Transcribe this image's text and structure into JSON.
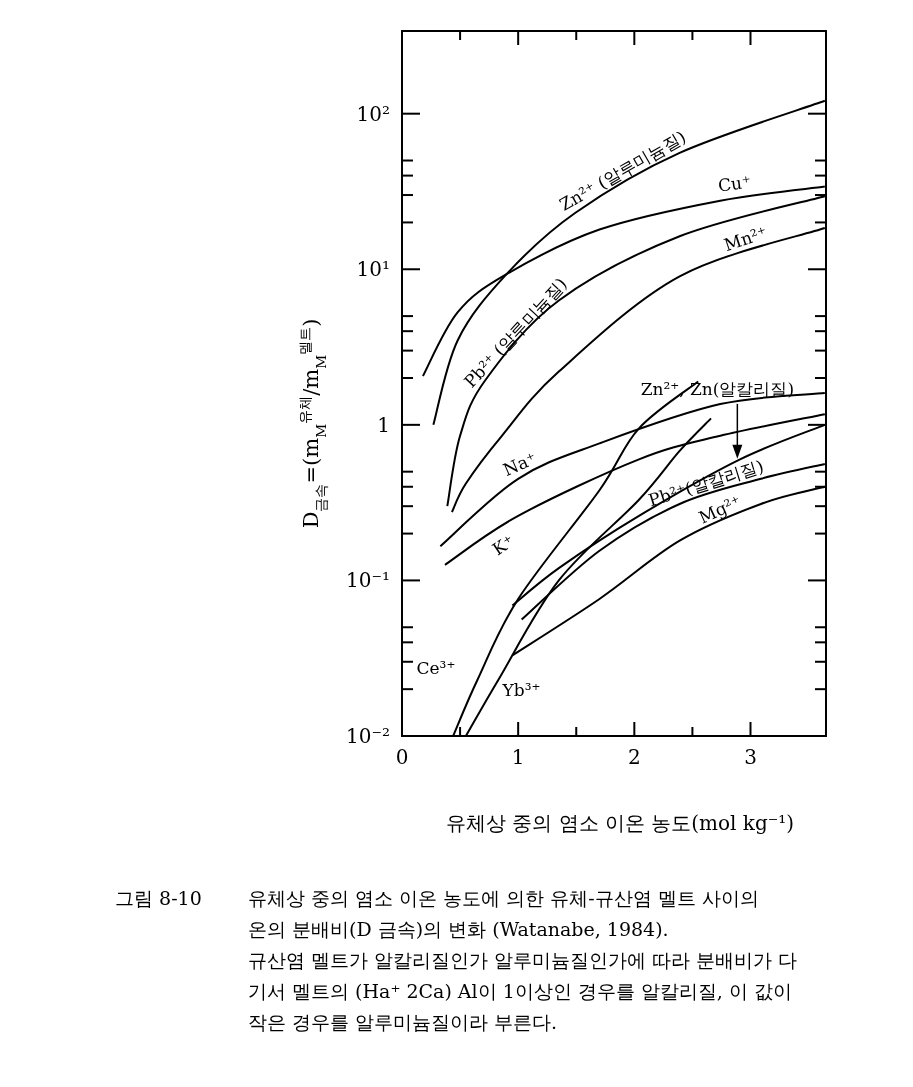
{
  "chart_data": {
    "type": "line",
    "xlabel": "유체상 중의 염소 이온 농도(mol kg⁻¹)",
    "ylabel": "D$_{금속}$=(m$_{M}$$^{유체}$/m$_{M}$$^{멜트}$)",
    "log": "y",
    "marker": "none",
    "line_style": "solid",
    "xlim": [
      0,
      3.65
    ],
    "ylim": [
      0.01,
      340
    ],
    "xticks": [
      0,
      {
        "value": 0.5,
        "label": null
      },
      1,
      {
        "value": 1.5,
        "label": null
      },
      2,
      {
        "value": 2.5,
        "label": null
      },
      3
    ],
    "yticks": [
      {
        "value": 0.01,
        "label": "10⁻²"
      },
      {
        "value": 0.02,
        "label": null
      },
      {
        "value": 0.03,
        "label": null
      },
      {
        "value": 0.04,
        "label": null
      },
      {
        "value": 0.05,
        "label": null
      },
      {
        "value": 0.1,
        "label": "10⁻¹"
      },
      {
        "value": 0.2,
        "label": null
      },
      {
        "value": 0.3,
        "label": null
      },
      {
        "value": 0.4,
        "label": null
      },
      {
        "value": 0.5,
        "label": null
      },
      1,
      {
        "value": 2,
        "label": null
      },
      {
        "value": 3,
        "label": null
      },
      {
        "value": 4,
        "label": null
      },
      {
        "value": 5,
        "label": null
      },
      {
        "value": 10,
        "label": "10¹"
      },
      {
        "value": 20,
        "label": null
      },
      {
        "value": 30,
        "label": null
      },
      {
        "value": 40,
        "label": null
      },
      {
        "value": 50,
        "label": null
      },
      {
        "value": 100,
        "label": "10²"
      }
    ],
    "series": [
      {
        "name": "Zn²⁺ (알루미늄질)",
        "color": "#000000",
        "x": [
          0.27,
          0.48,
          0.9,
          1.49,
          2.39,
          3.64
        ],
        "values": [
          1.0,
          3.5,
          9.3,
          23,
          56,
          121
        ]
      },
      {
        "name": "Cu⁺",
        "color": "#000000",
        "x": [
          0.18,
          0.48,
          0.9,
          1.7,
          2.74,
          3.64
        ],
        "values": [
          2.06,
          5.3,
          9.3,
          18,
          27.6,
          34
        ]
      },
      {
        "name": "Pb²⁺ (알루미늄질)",
        "color": "#000000",
        "x": [
          0.39,
          0.5,
          0.72,
          1.35,
          2.39,
          3.64
        ],
        "values": [
          0.3,
          0.85,
          1.95,
          6.3,
          16.3,
          29.5
        ]
      },
      {
        "name": "Mn²⁺",
        "color": "#000000",
        "x": [
          0.43,
          0.55,
          0.86,
          1.35,
          2.39,
          3.64
        ],
        "values": [
          0.275,
          0.42,
          0.85,
          2.2,
          9.0,
          18.4
        ]
      },
      {
        "name": "Zn²⁺, Zn(알칼리질)",
        "color": "#000000",
        "x": [
          0.95,
          1.35,
          2.04,
          2.91,
          3.64
        ],
        "values": [
          0.069,
          0.12,
          0.26,
          0.6,
          1.0
        ]
      },
      {
        "name": "Na⁺",
        "color": "#000000",
        "x": [
          0.33,
          1.0,
          1.7,
          2.74,
          3.64
        ],
        "values": [
          0.166,
          0.45,
          0.76,
          1.36,
          1.6
        ]
      },
      {
        "name": "K⁺",
        "color": "#000000",
        "x": [
          0.37,
          1.0,
          2.04,
          2.74,
          3.64
        ],
        "values": [
          0.126,
          0.26,
          0.6,
          0.85,
          1.17
        ]
      },
      {
        "name": "Pb²⁺(알칼리질)",
        "color": "#000000",
        "x": [
          1.03,
          1.7,
          2.39,
          3.09,
          3.64
        ],
        "values": [
          0.056,
          0.155,
          0.31,
          0.45,
          0.56
        ]
      },
      {
        "name": "Mg²⁺",
        "color": "#000000",
        "x": [
          0.95,
          1.7,
          2.39,
          3.09,
          3.64
        ],
        "values": [
          0.033,
          0.076,
          0.18,
          0.31,
          0.4
        ]
      },
      {
        "name": "Ce³⁺",
        "color": "#000000",
        "x": [
          0.44,
          0.65,
          1.0,
          1.7,
          2.04,
          2.55
        ],
        "values": [
          0.01,
          0.023,
          0.076,
          0.38,
          0.95,
          1.9
        ]
      },
      {
        "name": "Yb³⁺",
        "color": "#000000",
        "x": [
          0.55,
          0.83,
          1.35,
          2.04,
          2.39,
          2.66
        ],
        "values": [
          0.01,
          0.023,
          0.1,
          0.33,
          0.68,
          1.1
        ]
      }
    ],
    "annotations": [
      "그림 8-10",
      "유체상 중의 염소 이온 농도에 의한 유체-규산염 멜트 사이의",
      "온의 분배비(D 금속)의 변화 (Watanabe, 1984).",
      "규산염 멜트가 알칼리질인가 알루미늄질인가에 따라 분배비가 다",
      "기서 멜트의 (Ha⁺ 2Ca) Al이 1이상인 경우를 알칼리질, 이 값이",
      "작은 경우를 알루미늄질이라 부른다."
    ]
  }
}
